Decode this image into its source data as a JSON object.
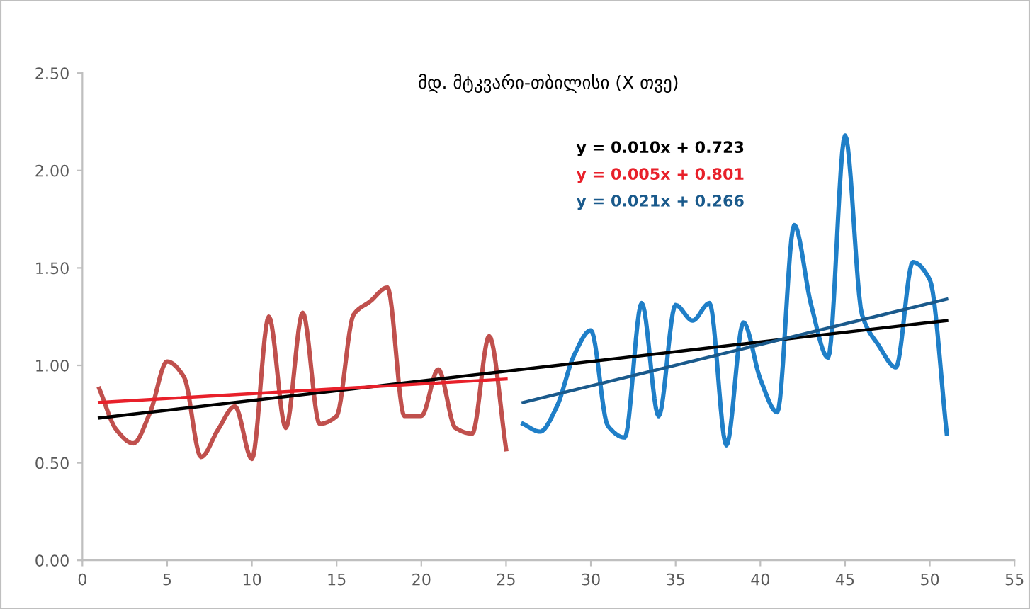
{
  "chart_data": {
    "type": "line",
    "title": "მდ. მტკვარი-თბილისი (X თვე)",
    "xlim": [
      0,
      55
    ],
    "xticks": [
      0,
      5,
      10,
      15,
      20,
      25,
      30,
      35,
      40,
      45,
      50,
      55
    ],
    "ylim": [
      0,
      2.5
    ],
    "yticks": [
      {
        "value": 0,
        "label": "0.00"
      },
      {
        "value": 0.5,
        "label": "0.50"
      },
      {
        "value": 1,
        "label": "1.00"
      },
      {
        "value": 1.5,
        "label": "1.50"
      },
      {
        "value": 2,
        "label": "2.00"
      },
      {
        "value": 2.5,
        "label": "2.50"
      }
    ],
    "grid": false,
    "legend": false,
    "marker": "none",
    "line_style": "solid",
    "series": [
      {
        "color": "#c0504d",
        "x": [
          1,
          2,
          3,
          4,
          5,
          6,
          7,
          8,
          9,
          10,
          11,
          12,
          13,
          14,
          15,
          16,
          17,
          18,
          19,
          20,
          21,
          22,
          23,
          24,
          25
        ],
        "values": [
          0.88,
          0.67,
          0.6,
          0.76,
          1.02,
          0.94,
          0.53,
          0.67,
          0.79,
          0.52,
          1.25,
          0.68,
          1.27,
          0.7,
          0.74,
          1.26,
          1.33,
          1.4,
          0.74,
          0.74,
          0.98,
          0.68,
          0.65,
          1.15,
          0.57
        ]
      },
      {
        "color": "#1f7fc8",
        "x": [
          26,
          27,
          28,
          29,
          30,
          31,
          32,
          33,
          34,
          35,
          36,
          37,
          38,
          39,
          40,
          41,
          42,
          43,
          44,
          45,
          46,
          47,
          48,
          49,
          50,
          51
        ],
        "values": [
          0.7,
          0.66,
          0.79,
          1.05,
          1.18,
          0.69,
          0.63,
          1.32,
          0.74,
          1.31,
          1.23,
          1.32,
          0.59,
          1.22,
          0.93,
          0.76,
          1.72,
          1.31,
          1.04,
          2.18,
          1.26,
          1.1,
          0.99,
          1.53,
          1.44,
          0.65
        ]
      },
      {
        "name": "y = 0.010x + 0.723",
        "color": "#000000",
        "x": [
          1,
          51
        ],
        "values": [
          0.73,
          1.23
        ]
      },
      {
        "name": "y = 0.005x + 0.801",
        "color": "#e8202a",
        "x": [
          1,
          25
        ],
        "values": [
          0.81,
          0.93
        ]
      },
      {
        "name": "y = 0.021x + 0.266",
        "color": "#1a5a8c",
        "x": [
          26,
          51
        ],
        "values": [
          0.81,
          1.34
        ]
      }
    ]
  }
}
